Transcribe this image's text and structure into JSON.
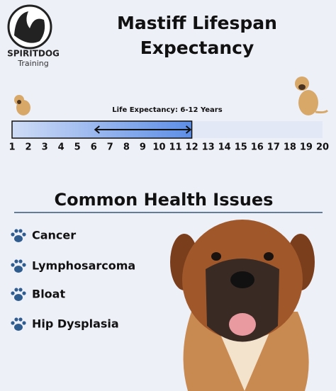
{
  "logo": {
    "name": "SPIRITDOG",
    "tagline": "Training"
  },
  "title": [
    "Mastiff Lifespan",
    "Expectancy"
  ],
  "timeline": {
    "label": "Life Expectancy: 6-12 Years",
    "ticks": [
      1,
      2,
      3,
      4,
      5,
      6,
      7,
      8,
      9,
      10,
      11,
      12,
      13,
      14,
      15,
      16,
      17,
      18,
      19,
      20
    ],
    "expectancy": [
      6,
      12
    ]
  },
  "health": {
    "title": "Common Health Issues",
    "items": [
      "Cancer",
      "Lymphosarcoma",
      "Bloat",
      "Hip Dysplasia"
    ]
  }
}
